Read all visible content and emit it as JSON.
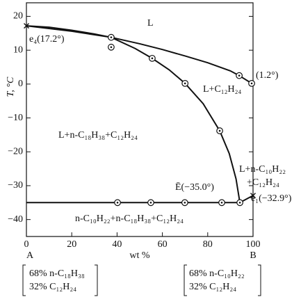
{
  "chart_data": {
    "type": "line",
    "xlabel": "wt %",
    "ylabel": "T, °C",
    "xlim": [
      0,
      100
    ],
    "ylim": [
      -45,
      24
    ],
    "xticks": [
      0,
      20,
      40,
      60,
      80,
      100
    ],
    "yticks": [
      {
        "value": -40,
        "label": "−40"
      },
      {
        "value": -30,
        "label": "−30"
      },
      {
        "value": -20,
        "label": "−20"
      },
      {
        "value": -10,
        "label": "−10"
      },
      0,
      10,
      20
    ],
    "series": [
      {
        "color": "#111111",
        "marker": "none",
        "x": [
          0,
          10,
          20,
          30,
          37.4,
          50,
          60,
          70,
          80,
          90,
          93.9,
          99.4
        ],
        "values": [
          17.2,
          16.8,
          15.9,
          14.8,
          13.8,
          11.9,
          10.2,
          8.3,
          6.3,
          3.9,
          2.5,
          0.2
        ]
      },
      {
        "color": "#111111",
        "marker": "none",
        "x": [
          0,
          20,
          37.4,
          48,
          55.5,
          63,
          70,
          78,
          85.3,
          89.5,
          92.5,
          94.2
        ],
        "values": [
          17.2,
          15.6,
          13.8,
          10.5,
          7.6,
          4.2,
          0.2,
          -5.8,
          -13.8,
          -20.5,
          -28,
          -35
        ]
      },
      {
        "color": "#111111",
        "marker": "none",
        "x": [
          0,
          94.2,
          100
        ],
        "values": [
          -35,
          -35,
          -32.9
        ]
      },
      {
        "color": "#111111",
        "marker": "dot-circle",
        "x": [
          37.4,
          37.4,
          55.5,
          70,
          85.3,
          93.9,
          99.4,
          40.2,
          54.9,
          69.9,
          86.2,
          94.2
        ],
        "values": [
          13.8,
          10.9,
          7.6,
          0.2,
          -13.8,
          2.5,
          0.2,
          -35,
          -35,
          -35,
          -35,
          -35
        ]
      },
      {
        "color": "#111111",
        "marker": "cross",
        "x": [
          0,
          100
        ],
        "values": [
          17.2,
          -32.9
        ]
      }
    ],
    "annotations": [
      "L",
      "e₄(17.2°)",
      "(1.2°)",
      "L+C₁₂H₂₄",
      "L+n-C₁₈H₃₈+C₁₂H₂₄",
      "L+n-C₁₀H₂₂",
      "+C₁₂H₂₄",
      "Ē(−35.0°)",
      "e₁(−32.9°)",
      "n-C₁₀H₂₂+n-C₁₈H₃₈+C₁₂H₂₄"
    ],
    "end_labels": [
      "A",
      "B"
    ],
    "compositions": [
      [
        "68% n-C₁₈H₃₈",
        "32% C₁₂H₂₄"
      ],
      [
        "68% n-C₁₀H₂₂",
        "32% C₁₂H₂₄"
      ]
    ]
  }
}
